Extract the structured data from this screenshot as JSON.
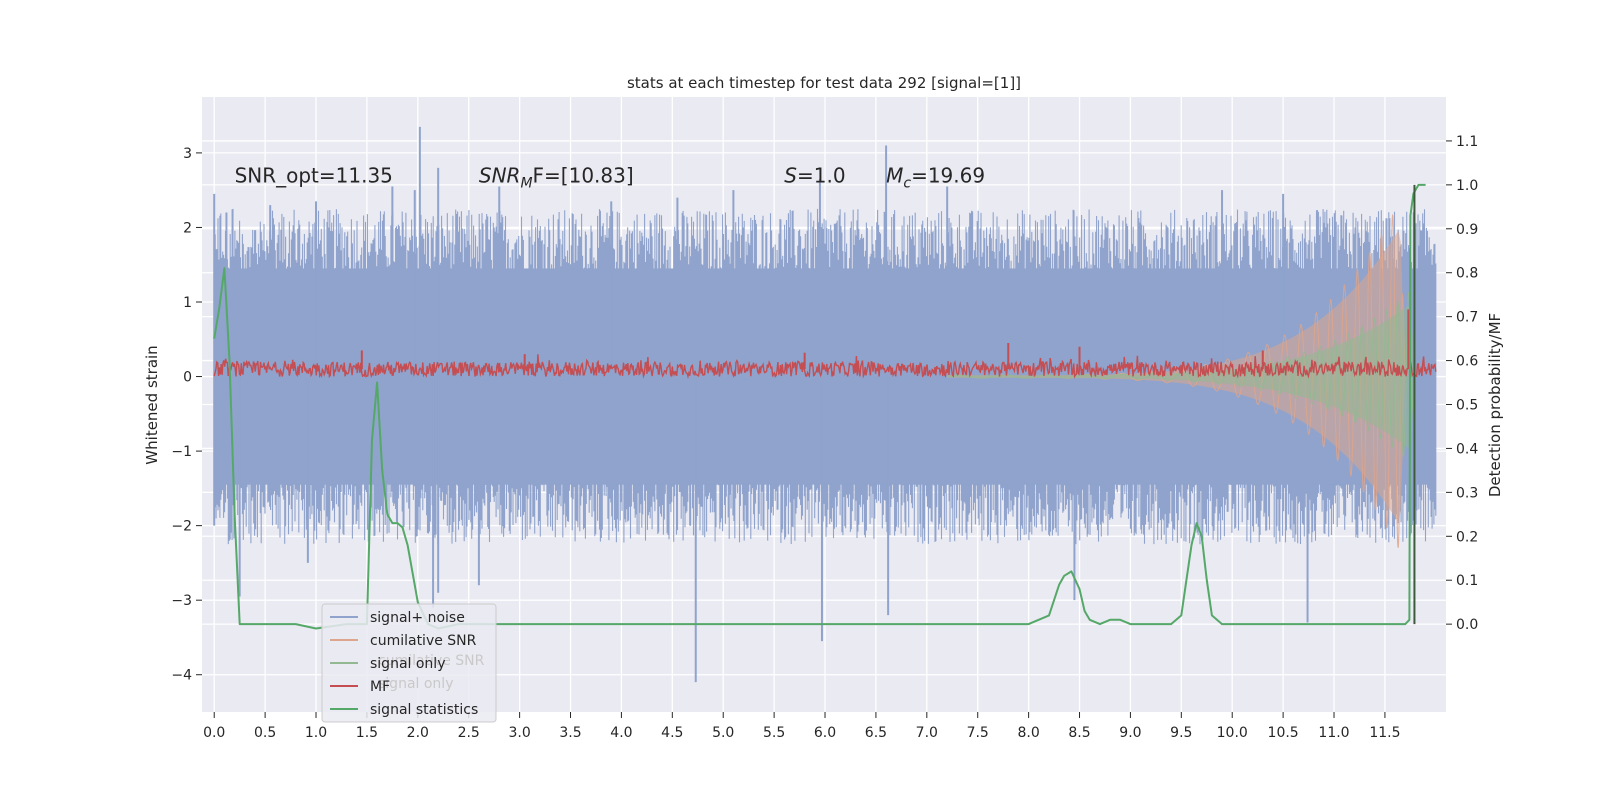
{
  "chart_data": {
    "type": "line",
    "title": "stats at each timestep for test data 292 [signal=[1]]",
    "xlabel": "",
    "ylabel": "Whitened strain",
    "y2label": "Detection probability/MF",
    "xlim": [
      -0.12,
      12.1
    ],
    "ylim": [
      -4.5,
      3.75
    ],
    "y2lim": [
      -0.2,
      1.2
    ],
    "x_ticks": [
      "0.0",
      "0.5",
      "1.0",
      "1.5",
      "2.0",
      "2.5",
      "3.0",
      "3.5",
      "4.0",
      "4.5",
      "5.0",
      "5.5",
      "6.0",
      "6.5",
      "7.0",
      "7.5",
      "8.0",
      "8.5",
      "9.0",
      "9.5",
      "10.0",
      "10.5",
      "11.0",
      "11.5"
    ],
    "y_ticks": [
      -4,
      -3,
      -2,
      -1,
      0,
      1,
      2,
      3
    ],
    "y2_ticks": [
      "0.0",
      "0.1",
      "0.2",
      "0.3",
      "0.4",
      "0.5",
      "0.6",
      "0.7",
      "0.8",
      "0.9",
      "1.0",
      "1.1"
    ],
    "grid": true,
    "legend_position": "lower-left",
    "annotations": {
      "snr_opt": {
        "x": 0.2,
        "y": 2.6,
        "text": "SNR_opt=11.35"
      },
      "snr_mf": {
        "x": 2.6,
        "y": 2.6,
        "main": "SNR",
        "sub": "M",
        "rest": "F=[10.83]"
      },
      "s": {
        "x": 5.6,
        "y": 2.6,
        "italic": "S",
        "rest": "=1.0"
      },
      "mc": {
        "x": 6.6,
        "y": 2.6,
        "main": "M",
        "sub": "c",
        "rest": "=19.69"
      }
    },
    "legend": [
      {
        "label": "signal+ noise",
        "color": "#8fa3cc"
      },
      {
        "label": "cumilative SNR",
        "color": "#dda58c"
      },
      {
        "label": "signal only",
        "color": "#93b892"
      },
      {
        "label": "MF",
        "color": "#c44e52"
      },
      {
        "label": "signal statistics",
        "color": "#55a868"
      }
    ],
    "legend_ghost": [
      "cumilative SNR",
      "signal only"
    ],
    "series": [
      {
        "name": "signal+ noise",
        "axis": "left",
        "color": "#8fa3cc",
        "style": "noise",
        "x_range": [
          0.0,
          12.0
        ],
        "envelope_pos": 1.45,
        "envelope_neg": -1.45,
        "spikes_pos": [
          [
            0.0,
            2.45
          ],
          [
            0.12,
            2.2
          ],
          [
            0.55,
            2.3
          ],
          [
            1.0,
            2.35
          ],
          [
            1.75,
            2.55
          ],
          [
            1.97,
            2.5
          ],
          [
            2.02,
            3.35
          ],
          [
            2.2,
            2.8
          ],
          [
            2.8,
            2.55
          ],
          [
            3.9,
            2.35
          ],
          [
            4.55,
            2.4
          ],
          [
            5.1,
            2.5
          ],
          [
            5.95,
            2.65
          ],
          [
            6.6,
            3.1
          ],
          [
            7.2,
            2.55
          ],
          [
            9.9,
            2.5
          ],
          [
            10.5,
            2.45
          ]
        ],
        "spikes_neg": [
          [
            0.0,
            -2.0
          ],
          [
            0.25,
            -2.95
          ],
          [
            0.92,
            -2.5
          ],
          [
            2.15,
            -3.1
          ],
          [
            2.2,
            -2.9
          ],
          [
            2.6,
            -2.8
          ],
          [
            4.73,
            -4.1
          ],
          [
            5.97,
            -3.55
          ],
          [
            6.62,
            -3.2
          ],
          [
            8.45,
            -3.0
          ],
          [
            10.74,
            -3.3
          ]
        ]
      },
      {
        "name": "cumilative SNR",
        "axis": "left",
        "color": "#dda58c",
        "style": "chirp",
        "x_range": [
          7.2,
          11.7
        ],
        "amp_at_start": 0.02,
        "amp_peak": 2.35,
        "peak_x": 11.65,
        "cycles_start": 2.2,
        "cycles_end": 9.5
      },
      {
        "name": "signal only",
        "axis": "left",
        "color": "#93b892",
        "style": "chirp",
        "x_range": [
          7.2,
          11.8
        ],
        "amp_at_start": 0.02,
        "amp_peak": 1.15,
        "peak_x": 11.75,
        "cycles_start": 2.2,
        "cycles_end": 9.5
      },
      {
        "name": "MF",
        "axis": "left",
        "color": "#c44e52",
        "style": "mf",
        "x_range": [
          0.0,
          12.0
        ],
        "band_low": 0.0,
        "band_high": 0.2,
        "spikes": [
          [
            1.45,
            0.35
          ],
          [
            3.05,
            0.3
          ],
          [
            5.8,
            0.32
          ],
          [
            7.8,
            0.45
          ],
          [
            8.5,
            0.4
          ],
          [
            10.3,
            0.35
          ],
          [
            11.73,
            0.9
          ]
        ]
      },
      {
        "name": "signal statistics",
        "axis": "right",
        "color": "#55a868",
        "style": "line",
        "x": [
          0.0,
          0.05,
          0.1,
          0.15,
          0.2,
          0.25,
          0.4,
          0.8,
          1.0,
          1.3,
          1.5,
          1.55,
          1.6,
          1.65,
          1.7,
          1.75,
          1.8,
          1.85,
          1.9,
          2.0,
          2.1,
          2.2,
          2.4,
          2.6,
          2.8,
          3.0,
          3.4,
          4.0,
          4.5,
          5.0,
          6.0,
          7.0,
          7.5,
          8.0,
          8.2,
          8.3,
          8.35,
          8.42,
          8.5,
          8.55,
          8.6,
          8.7,
          8.8,
          8.9,
          9.0,
          9.2,
          9.4,
          9.5,
          9.55,
          9.6,
          9.65,
          9.7,
          9.75,
          9.8,
          9.9,
          10.0,
          10.5,
          11.0,
          11.5,
          11.6,
          11.65,
          11.7,
          11.74,
          11.75,
          11.78,
          11.83,
          11.9
        ],
        "y": [
          0.65,
          0.72,
          0.81,
          0.6,
          0.25,
          0.0,
          0.0,
          0.0,
          -0.01,
          0.0,
          0.0,
          0.42,
          0.55,
          0.35,
          0.25,
          0.23,
          0.23,
          0.22,
          0.18,
          0.05,
          0.0,
          -0.01,
          0.0,
          0.0,
          0.0,
          0.0,
          0.0,
          0.0,
          0.0,
          0.0,
          0.0,
          0.0,
          0.0,
          0.0,
          0.02,
          0.09,
          0.11,
          0.12,
          0.08,
          0.03,
          0.01,
          0.0,
          0.01,
          0.01,
          0.0,
          0.0,
          0.0,
          0.02,
          0.1,
          0.18,
          0.23,
          0.2,
          0.1,
          0.02,
          0.0,
          0.0,
          0.0,
          0.0,
          0.0,
          0.0,
          0.0,
          0.0,
          0.01,
          0.93,
          0.98,
          1.0,
          1.0
        ]
      },
      {
        "name": "marker",
        "axis": "right",
        "color": "#3d5a3d",
        "style": "vline",
        "x": 11.79,
        "y_from": 0.0,
        "y_to": 1.0
      }
    ]
  }
}
